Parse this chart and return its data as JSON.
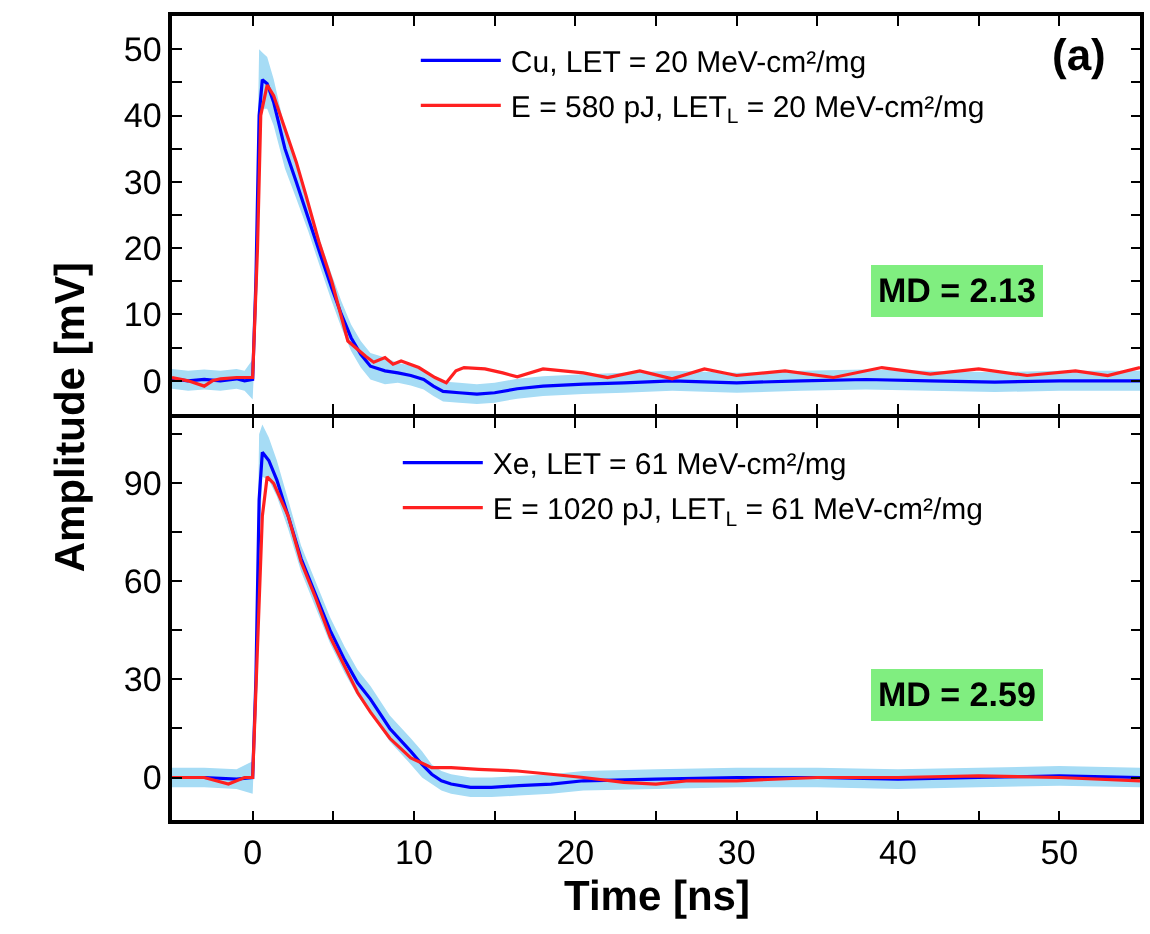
{
  "chart_data": [
    {
      "type": "line",
      "ylabel": "Amplitude [mV]",
      "xlim": [
        -5,
        55
      ],
      "ylim": [
        -5,
        55
      ],
      "tick_labels": "y",
      "legend": "top right",
      "marker": "none",
      "line_style": "solid",
      "xticks": [
        {
          "value": -5,
          "label": null
        },
        0,
        {
          "value": 5,
          "label": null
        },
        10,
        {
          "value": 15,
          "label": null
        },
        20,
        {
          "value": 25,
          "label": null
        },
        30,
        {
          "value": 35,
          "label": null
        },
        40,
        {
          "value": 45,
          "label": null
        },
        50,
        {
          "value": 55,
          "label": null
        }
      ],
      "yticks": [
        0,
        {
          "value": 5,
          "label": null
        },
        10,
        {
          "value": 15,
          "label": null
        },
        20,
        {
          "value": 25,
          "label": null
        },
        30,
        {
          "value": 35,
          "label": null
        },
        40,
        {
          "value": 45,
          "label": null
        },
        50
      ],
      "annotations": [
        "(a)",
        "MD = 2.13"
      ],
      "series": [
        {
          "name": "Cu, LET = 20 MeV-cm²/mg",
          "color": "#0000ff",
          "x": [
            -5,
            -4,
            -3,
            -2,
            -1,
            -0.5,
            0,
            0.2,
            0.4,
            0.6,
            0.9,
            1.3,
            2,
            2.7,
            3.45,
            4.2,
            4.9,
            5.5,
            6.1,
            6.7,
            7.3,
            8.2,
            9,
            9.8,
            10.6,
            11.2,
            11.8,
            12.8,
            13.9,
            15,
            16.4,
            18,
            20.5,
            23,
            26,
            30,
            34,
            38,
            42,
            46,
            50,
            55
          ],
          "values": [
            0.3,
            0,
            0.2,
            0,
            0.3,
            0,
            0.2,
            15,
            40,
            45.4,
            44.8,
            42,
            35,
            30,
            24.5,
            19,
            14,
            10,
            6.5,
            4,
            2.2,
            1.5,
            1.2,
            0.8,
            0.2,
            -0.8,
            -1.6,
            -1.8,
            -2,
            -1.8,
            -1.2,
            -0.8,
            -0.5,
            -0.3,
            0,
            -0.3,
            0,
            0.2,
            0,
            -0.2,
            0,
            0
          ],
          "upper": [
            1.8,
            1.5,
            1.7,
            1.5,
            1.8,
            1.5,
            3.2,
            22,
            50,
            49.5,
            48.8,
            45.5,
            38,
            32.5,
            26.5,
            21,
            16,
            12,
            8.5,
            6,
            4.2,
            3.5,
            2.7,
            2.3,
            1.7,
            0.7,
            -0.1,
            -0.3,
            -0.5,
            -0.3,
            0.3,
            0.7,
            1,
            1.2,
            1.5,
            1.2,
            1.5,
            1.7,
            1.5,
            1.3,
            1.5,
            1.5
          ],
          "lower": [
            -1.2,
            -1.5,
            -1.3,
            -1.5,
            -1.2,
            -1.5,
            -2.8,
            8,
            33,
            41,
            41,
            38.5,
            32,
            27.5,
            22.5,
            17,
            12,
            8,
            4.5,
            2,
            0.2,
            -0.5,
            -0.3,
            -0.7,
            -1.3,
            -2.3,
            -3.1,
            -3.3,
            -3.5,
            -3.3,
            -2.7,
            -2.3,
            -2,
            -1.8,
            -1.5,
            -1.8,
            -1.5,
            -1.3,
            -1.5,
            -1.7,
            -1.5,
            -1.5
          ]
        },
        {
          "name": "E = 580 pJ, LET$_{L}$ = 20 MeV-cm²/mg",
          "color": "#ff2020",
          "x": [
            -5,
            -4,
            -3,
            -2.5,
            -2,
            -1,
            0,
            0.3,
            0.5,
            0.9,
            1.3,
            2,
            2.7,
            3.3,
            4.1,
            4.9,
            5.9,
            7,
            7.5,
            8.2,
            8.7,
            9.2,
            10.3,
            11.3,
            12,
            12.6,
            13.1,
            14.4,
            15.5,
            16.4,
            18,
            20.5,
            22,
            24,
            26,
            28,
            30,
            33,
            36,
            39,
            42,
            45,
            48,
            51,
            53,
            55
          ],
          "values": [
            0.5,
            0,
            -0.8,
            0,
            0.3,
            0.5,
            0.5,
            20,
            40,
            44.6,
            43,
            38,
            33,
            28,
            21,
            15,
            6,
            3.7,
            2.8,
            3.5,
            2.5,
            3,
            2,
            0.5,
            -0.3,
            1.5,
            2,
            1.8,
            1.2,
            0.6,
            1.8,
            1.2,
            0.5,
            1.5,
            0.3,
            1.8,
            0.8,
            1.5,
            0.5,
            2,
            1,
            1.8,
            0.8,
            1.5,
            0.8,
            2
          ]
        }
      ]
    },
    {
      "type": "line",
      "xlabel": "Time [ns]",
      "xlim": [
        -5,
        55
      ],
      "ylim": [
        -13,
        110
      ],
      "legend": "top right",
      "marker": "none",
      "line_style": "solid",
      "xticks": [
        {
          "value": -5,
          "label": null
        },
        0,
        {
          "value": 5,
          "label": null
        },
        10,
        {
          "value": 15,
          "label": null
        },
        20,
        {
          "value": 25,
          "label": null
        },
        30,
        {
          "value": 35,
          "label": null
        },
        40,
        {
          "value": 45,
          "label": null
        },
        50,
        {
          "value": 55,
          "label": null
        }
      ],
      "yticks": [
        0,
        {
          "value": 15,
          "label": null
        },
        30,
        {
          "value": 45,
          "label": null
        },
        60,
        {
          "value": 75,
          "label": null
        },
        90,
        {
          "value": 105,
          "label": null
        }
      ],
      "annotations": [
        "MD = 2.59"
      ],
      "series": [
        {
          "name": "Xe, LET = 61 MeV-cm²/mg",
          "color": "#0000ff",
          "x": [
            -5,
            -3,
            -1,
            0,
            0.2,
            0.4,
            0.6,
            1,
            1.5,
            2.2,
            3,
            3.9,
            4.8,
            5.7,
            6.5,
            7.3,
            8.5,
            9.8,
            10.5,
            11.1,
            11.7,
            12.3,
            13.5,
            14.8,
            16.5,
            18.5,
            20.5,
            25,
            30,
            35,
            40,
            45,
            50,
            55
          ],
          "values": [
            0,
            0,
            -0.5,
            0,
            30,
            85,
            99.5,
            97,
            91,
            80,
            67,
            56,
            45,
            36,
            29,
            24,
            15,
            8,
            4,
            1,
            -1,
            -2,
            -3,
            -3,
            -2.5,
            -2,
            -1,
            -0.5,
            0,
            0,
            -0.5,
            0,
            0.5,
            0
          ],
          "upper": [
            3,
            3,
            2.5,
            5,
            40,
            105,
            108,
            104,
            97,
            85,
            71,
            60,
            49,
            40,
            33,
            28,
            19,
            12,
            8,
            4,
            2,
            1,
            0,
            0,
            0.5,
            1,
            2,
            2.5,
            3,
            3,
            2.5,
            3,
            3.5,
            3
          ],
          "lower": [
            -3,
            -3,
            -3.5,
            -5,
            20,
            70,
            92,
            91,
            86,
            76,
            63,
            52,
            41,
            32,
            25,
            20,
            11,
            4,
            0,
            -2,
            -4,
            -5,
            -6,
            -6,
            -5.5,
            -5,
            -4,
            -3.5,
            -3,
            -3,
            -3.5,
            -3,
            -2.5,
            -3
          ]
        },
        {
          "name": "E = 1020 pJ, LET$_{L}$ = 61 MeV-cm²/mg",
          "color": "#ff2020",
          "x": [
            -5,
            -3,
            -1.5,
            -0.5,
            0,
            0.3,
            0.6,
            0.9,
            1.3,
            2.2,
            3,
            3.9,
            4.8,
            5.7,
            6.5,
            7.3,
            8.5,
            9.8,
            11.1,
            12.3,
            14,
            16.4,
            18.5,
            20.5,
            23,
            25,
            27,
            30,
            35,
            40,
            45,
            50,
            55
          ],
          "values": [
            0,
            0,
            -2,
            0,
            0,
            40,
            80,
            92,
            90,
            80,
            66,
            55,
            43,
            34,
            26,
            20,
            12,
            6,
            3,
            3,
            2.5,
            2,
            1,
            0,
            -1.5,
            -2,
            -1,
            -1,
            0,
            0,
            0.5,
            0,
            -1
          ]
        }
      ]
    }
  ]
}
